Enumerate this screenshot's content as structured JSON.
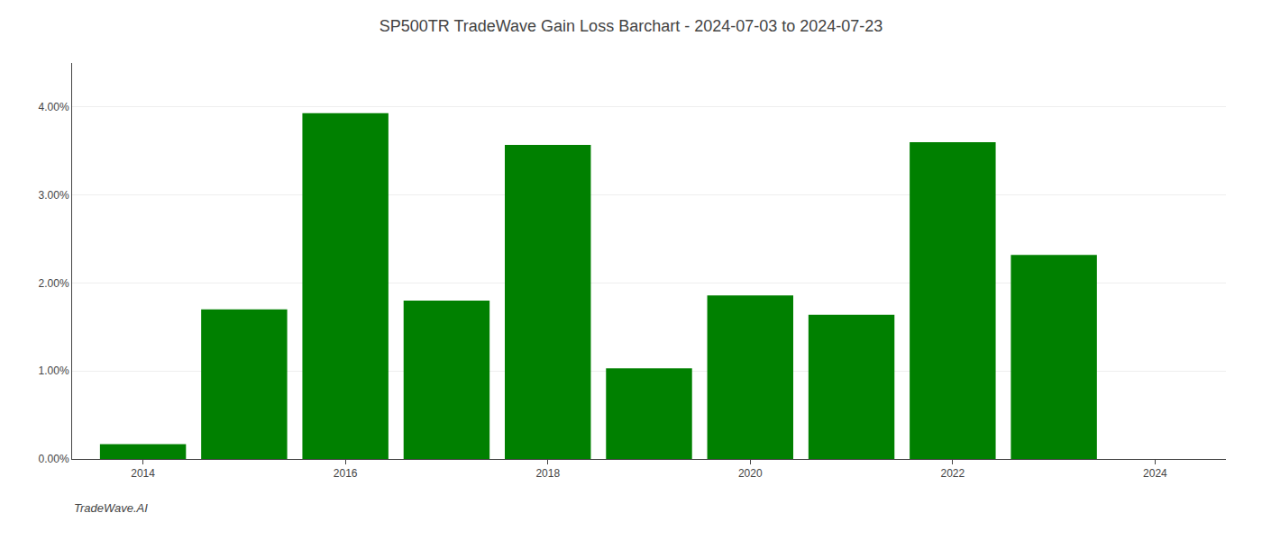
{
  "chart_data": {
    "type": "bar",
    "title": "SP500TR TradeWave Gain Loss Barchart - 2024-07-03 to 2024-07-23",
    "annotations": [
      "TradeWave.AI"
    ],
    "x": [
      2014,
      2015,
      2016,
      2017,
      2018,
      2019,
      2020,
      2021,
      2022,
      2023,
      2024
    ],
    "values": [
      0.0017,
      0.017,
      0.0393,
      0.018,
      0.0357,
      0.0103,
      0.0186,
      0.0164,
      0.036,
      0.0232,
      0.0
    ],
    "color": "#008000",
    "xlim": [
      2013.3,
      2024.7
    ],
    "xticks": [
      2014,
      2016,
      2018,
      2020,
      2022,
      2024
    ],
    "ylim": [
      0,
      0.045
    ],
    "yticks": [
      {
        "value": 0.0,
        "label": "0.00%"
      },
      {
        "value": 0.01,
        "label": "1.00%"
      },
      {
        "value": 0.02,
        "label": "2.00%"
      },
      {
        "value": 0.03,
        "label": "3.00%"
      },
      {
        "value": 0.04,
        "label": "4.00%"
      }
    ],
    "grid": true
  }
}
